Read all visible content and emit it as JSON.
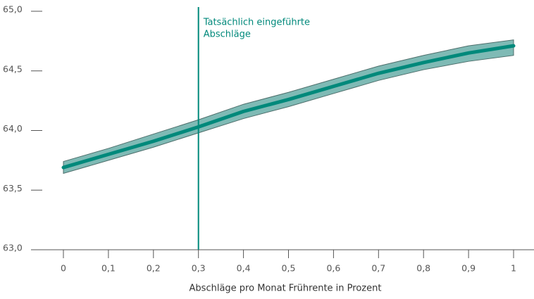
{
  "chart_data": {
    "type": "line",
    "xlabel": "Abschläge pro Monat Frührente in Prozent",
    "x": [
      0,
      0.1,
      0.2,
      0.3,
      0.4,
      0.5,
      0.6,
      0.7,
      0.8,
      0.9,
      1
    ],
    "values": [
      63.69,
      63.8,
      63.91,
      64.03,
      64.16,
      64.26,
      64.37,
      64.48,
      64.57,
      64.65,
      64.71
    ],
    "lower": [
      63.64,
      63.75,
      63.86,
      63.98,
      64.1,
      64.2,
      64.31,
      64.42,
      64.51,
      64.58,
      64.63
    ],
    "upper": [
      63.74,
      63.85,
      63.97,
      64.09,
      64.22,
      64.32,
      64.43,
      64.54,
      64.63,
      64.71,
      64.76
    ],
    "color": "#00897b",
    "band_color": "#7fbab5",
    "band_edge": "#4d6e6b",
    "annotation": {
      "x": 0.3,
      "lines": [
        "Tatsächlich eingeführte",
        "Abschläge"
      ],
      "color": "#00897b"
    },
    "xlim": [
      0,
      1
    ],
    "ylim": [
      63.0,
      65.0
    ],
    "xticks": [
      0,
      {
        "value": 0.1,
        "label": "0,1"
      },
      {
        "value": 0.2,
        "label": "0,2"
      },
      {
        "value": 0.3,
        "label": "0,3"
      },
      {
        "value": 0.4,
        "label": "0,4"
      },
      {
        "value": 0.5,
        "label": "0,5"
      },
      {
        "value": 0.6,
        "label": "0,6"
      },
      {
        "value": 0.7,
        "label": "0,7"
      },
      {
        "value": 0.8,
        "label": "0,8"
      },
      {
        "value": 0.9,
        "label": "0,9"
      },
      1
    ],
    "yticks": [
      {
        "value": 63.0,
        "label": "63,0"
      },
      {
        "value": 63.5,
        "label": "63,5"
      },
      {
        "value": 64.0,
        "label": "64,0"
      },
      {
        "value": 64.5,
        "label": "64,5"
      },
      {
        "value": 65.0,
        "label": "65,0"
      }
    ]
  }
}
